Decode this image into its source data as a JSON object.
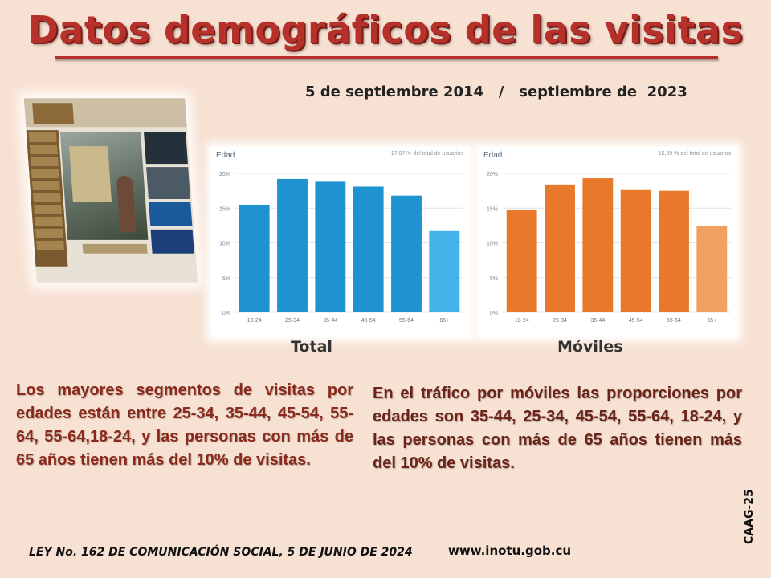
{
  "header": {
    "title": "Datos demográficos de las visitas",
    "date_start": "5 de septiembre 2014",
    "date_separator": "/",
    "date_end": "septiembre de  2023"
  },
  "chart_data": [
    {
      "type": "bar",
      "title": "Edad",
      "note": "17,87 % del total de usuarios",
      "categories": [
        "18-24",
        "25-34",
        "35-44",
        "45-54",
        "55-64",
        "65+"
      ],
      "values": [
        15.5,
        19.2,
        18.8,
        18.1,
        16.8,
        11.7
      ],
      "ylim": [
        0,
        20
      ],
      "yticks": [
        0,
        5,
        10,
        15,
        20
      ],
      "ytick_labels": [
        "0%",
        "5%",
        "10%",
        "15%",
        "20%"
      ],
      "bar_color": "#1f93cf",
      "last_bar_color": "#43b2e8",
      "caption": "Total"
    },
    {
      "type": "bar",
      "title": "Edad",
      "note": "15,39 % del total de usuarios",
      "categories": [
        "18-24",
        "25-34",
        "35-44",
        "45-54",
        "55-64",
        "65+"
      ],
      "values": [
        14.8,
        18.4,
        19.3,
        17.6,
        17.5,
        12.4
      ],
      "ylim": [
        0,
        20
      ],
      "yticks": [
        0,
        5,
        10,
        15,
        20
      ],
      "ytick_labels": [
        "0%",
        "5%",
        "10%",
        "15%",
        "20%"
      ],
      "bar_color": "#e8792a",
      "last_bar_color": "#f0a060",
      "caption": "Móviles"
    }
  ],
  "text": {
    "left_paragraph": "Los mayores segmentos de visitas por edades están entre 25-34, 35-44, 45-54, 55-64, 55-64,18-24, y las personas con más de 65 años tienen más del 10% de visitas.",
    "right_paragraph": "En el tráfico por móviles las proporciones por edades son 35-44, 25-34, 45-54, 55-64, 18-24, y  las personas con más de 65 años tienen más del 10% de visitas.",
    "left_color": "#8b2a1c",
    "right_color": "#6a2418"
  },
  "footer": {
    "law": "LEY No. 162 DE COMUNICACIÓN SOCIAL, 5 DE JUNIO DE 2024",
    "url": "www.inotu.gob.cu",
    "code": "CAAG-25"
  }
}
